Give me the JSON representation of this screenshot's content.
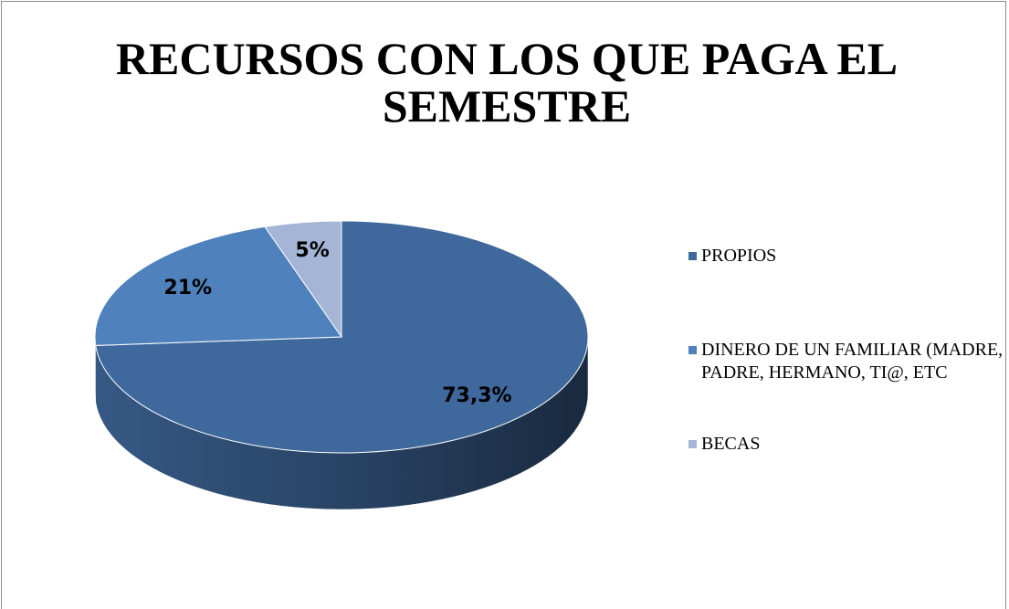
{
  "chart_data": {
    "type": "pie3d",
    "title": "RECURSOS CON LOS QUE PAGA EL SEMESTRE",
    "categories": [
      "PROPIOS",
      "DINERO DE UN FAMILIAR (MADRE, PADRE, HERMANO, TI@, ETC",
      "BECAS"
    ],
    "values": [
      73.3,
      21,
      5
    ],
    "value_labels": [
      "73,3%",
      "21%",
      "5%"
    ],
    "colors": [
      "#3f689c",
      "#4f81bd",
      "#a5b5d5"
    ],
    "legend": "right"
  }
}
